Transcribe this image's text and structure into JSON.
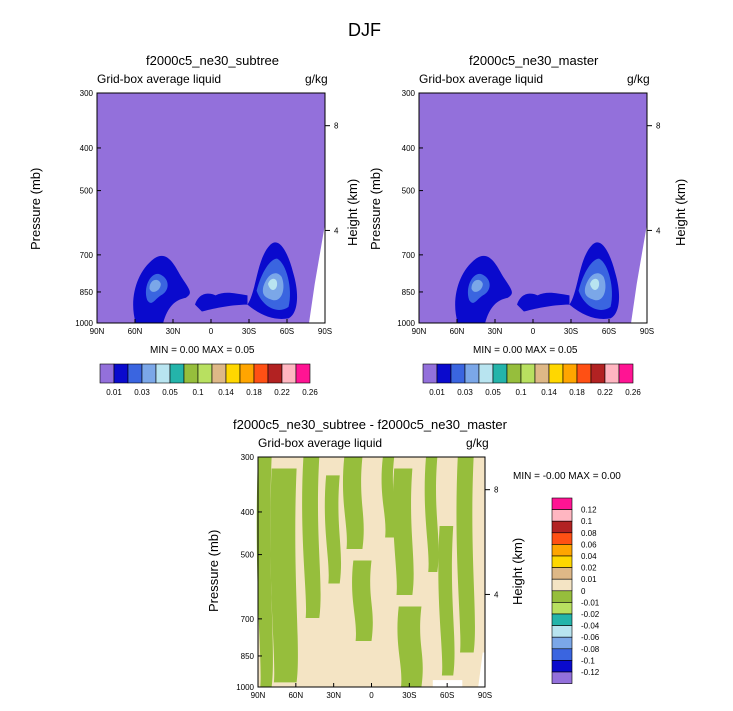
{
  "figure_title": "DJF",
  "colors": {
    "background": "#9370DB",
    "deep_blue": "#0A0ACD",
    "blue": "#3A65E0",
    "light_blue": "#7BA7E8",
    "pale_blue": "#B8E4F0",
    "tan": "#F4E4C4",
    "green": "#96BE3C",
    "light_green": "#B8E060"
  },
  "chart_data": [
    {
      "type": "contour",
      "title": "f2000c5_ne30_subtree",
      "left_label": "Grid-box average liquid",
      "right_label": "g/kg",
      "ylabel": "Pressure (mb)",
      "ylabel_right": "Height (km)",
      "x_ticks": [
        "90N",
        "60N",
        "30N",
        "0",
        "30S",
        "60S",
        "90S"
      ],
      "x_range": [
        90,
        -90
      ],
      "y_ticks": [
        "300",
        "400",
        "500",
        "700",
        "850",
        "1000"
      ],
      "y_range": [
        300,
        1000
      ],
      "y_right_ticks": [
        "8",
        "4"
      ],
      "min_text": "MIN =   0.00  MAX =  0.05",
      "fill_levels": [
        0.01,
        0.02,
        0.03,
        0.04
      ]
    },
    {
      "type": "contour",
      "title": "f2000c5_ne30_master",
      "left_label": "Grid-box average liquid",
      "right_label": "g/kg",
      "ylabel": "Pressure (mb)",
      "ylabel_right": "Height (km)",
      "x_ticks": [
        "90N",
        "60N",
        "30N",
        "0",
        "30S",
        "60S",
        "90S"
      ],
      "x_range": [
        90,
        -90
      ],
      "y_ticks": [
        "300",
        "400",
        "500",
        "700",
        "850",
        "1000"
      ],
      "y_range": [
        300,
        1000
      ],
      "y_right_ticks": [
        "8",
        "4"
      ],
      "min_text": "MIN =   0.00  MAX =  0.05",
      "fill_levels": [
        0.01,
        0.02,
        0.03,
        0.04
      ]
    },
    {
      "type": "contour",
      "title": "f2000c5_ne30_subtree - f2000c5_ne30_master",
      "left_label": "Grid-box average liquid",
      "right_label": "g/kg",
      "ylabel": "Pressure (mb)",
      "ylabel_right": "Height (km)",
      "x_ticks": [
        "90N",
        "60N",
        "30N",
        "0",
        "30S",
        "60S",
        "90S"
      ],
      "x_range": [
        90,
        -90
      ],
      "y_ticks": [
        "300",
        "400",
        "500",
        "700",
        "850",
        "1000"
      ],
      "y_range": [
        300,
        1000
      ],
      "y_right_ticks": [
        "8",
        "4"
      ],
      "min_text": "MIN =  -0.00  MAX =   0.00",
      "fill_levels": [
        -0.01,
        0.0,
        0.01
      ]
    }
  ],
  "colorbar_top": {
    "colors": [
      "#9370DB",
      "#0A0ACD",
      "#3A65E0",
      "#7BA7E8",
      "#B8E4F0",
      "#24B4AA",
      "#96BE3C",
      "#B8E060",
      "#DEB887",
      "#FFD700",
      "#FFA500",
      "#FF5014",
      "#B22222",
      "#FFB6C1",
      "#FF1493"
    ],
    "labels": [
      "0.01",
      "0.03",
      "0.05",
      "0.1",
      "0.14",
      "0.18",
      "0.22",
      "0.26"
    ]
  },
  "colorbar_diff": {
    "colors_bottom_to_top": [
      "#9370DB",
      "#0A0ACD",
      "#3A65E0",
      "#7BA7E8",
      "#B8E4F0",
      "#24B4AA",
      "#B8E060",
      "#96BE3C",
      "#F4E4C4",
      "#DEB887",
      "#FFD700",
      "#FFA500",
      "#FF5014",
      "#B22222",
      "#FFB6C1",
      "#FF1493"
    ],
    "labels_top_to_bottom": [
      "0.12",
      "0.1",
      "0.08",
      "0.06",
      "0.04",
      "0.02",
      "0.01",
      "0",
      "-0.01",
      "-0.02",
      "-0.04",
      "-0.06",
      "-0.08",
      "-0.1",
      "-0.12"
    ]
  }
}
